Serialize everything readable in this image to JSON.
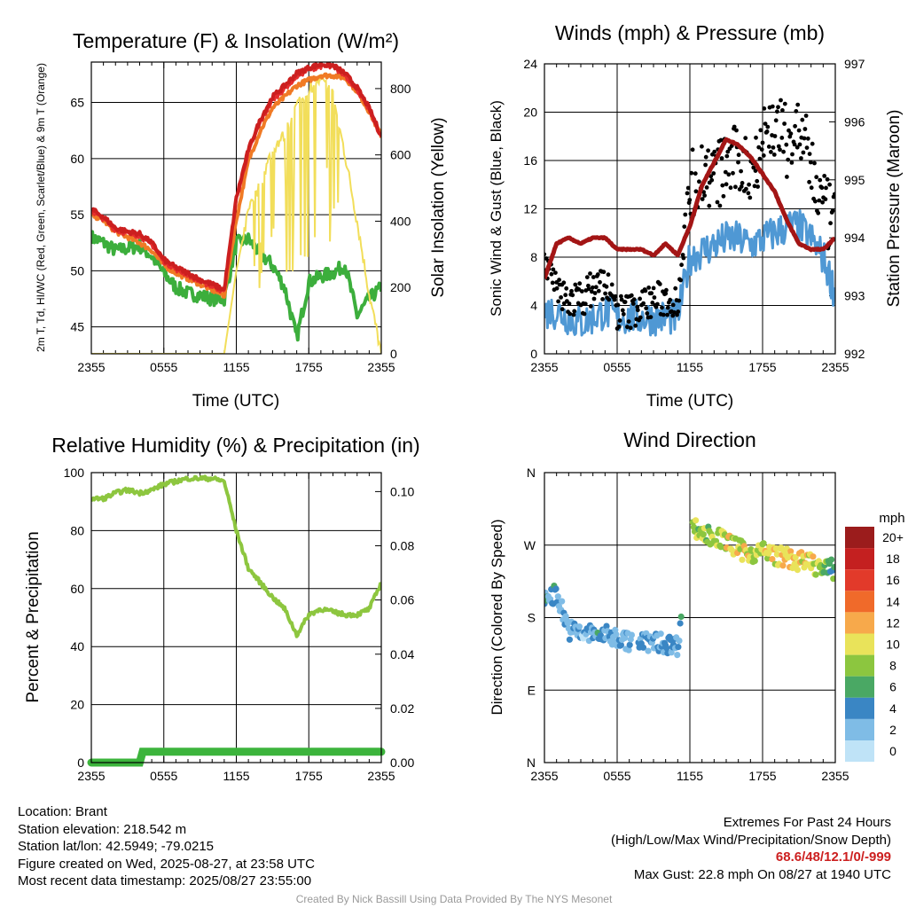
{
  "colors": {
    "t2m": "#cc1f1f",
    "td": "#3cae3c",
    "hiwc": "#e62d2d",
    "t9m": "#f07a25",
    "insolation": "#f2de5a",
    "rh": "#8dc63f",
    "precip": "#3cb43c",
    "pressure": "#a31515",
    "wind": "#4f98d4",
    "gust": "#000000"
  },
  "chart_data": [
    {
      "type": "line",
      "title": "Temperature (F) & Insolation (W/m²)",
      "xlabel": "Time (UTC)",
      "ylabel": "2m T, Td, HI/WC (Red, Green, Scarlet/Blue) & 9m T (Orange)",
      "y2label": "Solar Insolation (Yellow)",
      "x_ticks": [
        "2355",
        "0555",
        "1155",
        "1755",
        "2355"
      ],
      "ylim": [
        42.6,
        68.6
      ],
      "y_ticks": [
        45,
        50,
        55,
        60,
        65
      ],
      "y2lim": [
        0,
        880
      ],
      "y2_ticks": [
        0,
        200,
        400,
        600,
        800
      ],
      "x_hours": [
        0,
        1,
        2,
        3,
        4,
        5,
        6,
        7,
        8,
        9,
        10,
        11,
        12,
        13,
        14,
        15,
        16,
        17,
        18,
        19,
        20,
        21,
        22,
        23,
        24
      ],
      "series": [
        {
          "key": "t2m",
          "axis": "left",
          "values": [
            55.5,
            54.8,
            53.8,
            53.5,
            53.3,
            52.5,
            51.0,
            50.3,
            49.8,
            49.2,
            48.8,
            48.3,
            56.5,
            60.8,
            63.5,
            65.5,
            66.5,
            67.6,
            68.1,
            68.4,
            68.3,
            67.6,
            66.3,
            64.5,
            62.0
          ]
        },
        {
          "key": "hiwc",
          "axis": "left",
          "values": [
            55.3,
            54.6,
            53.6,
            53.3,
            53.1,
            52.3,
            50.8,
            50.1,
            49.6,
            49.0,
            48.6,
            48.1,
            56.2,
            60.5,
            63.2,
            65.2,
            66.2,
            67.3,
            67.9,
            68.2,
            68.1,
            67.4,
            66.1,
            64.3,
            61.8
          ]
        },
        {
          "key": "t9m",
          "axis": "left",
          "values": [
            55.0,
            54.5,
            53.5,
            53.0,
            52.5,
            51.8,
            50.5,
            49.8,
            49.3,
            48.8,
            48.3,
            47.8,
            54.5,
            59.8,
            62.5,
            64.5,
            65.5,
            66.5,
            67.0,
            67.4,
            67.4,
            67.2,
            66.0,
            64.2,
            62.0
          ]
        },
        {
          "key": "td",
          "axis": "left",
          "values": [
            53.0,
            52.5,
            51.8,
            52.0,
            52.2,
            51.3,
            49.8,
            48.5,
            48.0,
            47.8,
            47.5,
            47.5,
            52.5,
            52.8,
            51.5,
            50.5,
            48.5,
            44.0,
            49.0,
            49.5,
            49.8,
            50.5,
            46.0,
            47.5,
            48.5
          ]
        },
        {
          "key": "insolation",
          "axis": "right",
          "values": [
            0,
            0,
            0,
            0,
            0,
            0,
            0,
            0,
            0,
            0,
            0,
            0,
            250,
            430,
            510,
            620,
            660,
            750,
            800,
            830,
            780,
            600,
            400,
            180,
            0
          ]
        }
      ]
    },
    {
      "type": "line",
      "title": "Winds (mph) & Pressure (mb)",
      "xlabel": "Time (UTC)",
      "ylabel": "Sonic Wind & Gust (Blue, Black)",
      "y2label": "Station Pressure (Maroon)",
      "x_ticks": [
        "2355",
        "0555",
        "1155",
        "1755",
        "2355"
      ],
      "ylim": [
        0,
        24
      ],
      "y_ticks": [
        0,
        4,
        8,
        12,
        16,
        20,
        24
      ],
      "y2lim": [
        992,
        997
      ],
      "y2_ticks": [
        992,
        993,
        994,
        995,
        996,
        997
      ],
      "x_hours": [
        0,
        1,
        2,
        3,
        4,
        5,
        6,
        7,
        8,
        9,
        10,
        11,
        12,
        13,
        14,
        15,
        16,
        17,
        18,
        19,
        20,
        21,
        22,
        23,
        24
      ],
      "series": [
        {
          "key": "pressure",
          "axis": "right",
          "values": [
            993.3,
            993.9,
            994.0,
            993.9,
            994.0,
            994.0,
            993.8,
            993.8,
            993.8,
            993.7,
            993.9,
            993.7,
            994.2,
            994.9,
            995.3,
            995.7,
            995.6,
            995.4,
            995.1,
            994.8,
            994.3,
            993.9,
            993.8,
            993.8,
            994.0
          ]
        },
        {
          "key": "wind",
          "axis": "left",
          "values": [
            3.5,
            3.5,
            3.0,
            2.5,
            3.0,
            3.5,
            3.0,
            3.0,
            3.0,
            3.0,
            3.0,
            3.0,
            8.0,
            8.5,
            9.0,
            9.5,
            9.5,
            9.0,
            9.5,
            10.0,
            10.5,
            10.5,
            9.5,
            8.0,
            5.0
          ]
        },
        {
          "key": "gust",
          "axis": "left",
          "values": [
            8.0,
            5.0,
            4.5,
            4.5,
            5.5,
            6.0,
            3.5,
            3.5,
            4.0,
            4.5,
            4.5,
            4.5,
            14.0,
            15.0,
            14.5,
            15.5,
            16.0,
            15.0,
            18.0,
            19.0,
            17.5,
            18.5,
            15.5,
            12.0,
            10.5
          ]
        }
      ]
    },
    {
      "type": "line",
      "title": "Relative Humidity (%) & Precipitation (in)",
      "xlabel": "",
      "ylabel": "Percent & Precipitation",
      "x_ticks": [
        "2355",
        "0555",
        "1155",
        "1755",
        "2355"
      ],
      "ylim": [
        0,
        100
      ],
      "y_ticks": [
        0,
        20,
        40,
        60,
        80,
        100
      ],
      "y2lim": [
        0,
        0.107
      ],
      "y2_ticks": [
        "0.00",
        "0.02",
        "0.04",
        "0.06",
        "0.08",
        "0.10"
      ],
      "x_hours": [
        0,
        1,
        2,
        3,
        4,
        5,
        6,
        7,
        8,
        9,
        10,
        11,
        12,
        13,
        14,
        15,
        16,
        17,
        18,
        19,
        20,
        21,
        22,
        23,
        24
      ],
      "series": [
        {
          "key": "rh",
          "axis": "left",
          "values": [
            91,
            91,
            93,
            94,
            93,
            94,
            96,
            97,
            98,
            98,
            98,
            97,
            80,
            67,
            62,
            57,
            53,
            44,
            51,
            53,
            52,
            51,
            51,
            53,
            62
          ]
        },
        {
          "key": "precip",
          "axis": "right",
          "values": [
            0,
            0,
            0,
            0,
            0.004,
            0.004,
            0.004,
            0.004,
            0.004,
            0.004,
            0.004,
            0.004,
            0.004,
            0.004,
            0.004,
            0.004,
            0.004,
            0.004,
            0.004,
            0.004,
            0.004,
            0.004,
            0.004,
            0.004,
            0.004
          ]
        }
      ]
    },
    {
      "type": "scatter",
      "title": "Wind Direction",
      "xlabel": "",
      "ylabel": "Direction (Colored By Speed)",
      "x_ticks": [
        "2355",
        "0555",
        "1155",
        "1755",
        "2355"
      ],
      "y_ticks": [
        "N",
        "E",
        "S",
        "W",
        "N"
      ],
      "ylim_deg": [
        0,
        360
      ],
      "direction_hours": [
        0,
        1,
        2,
        3,
        4,
        5,
        6,
        7,
        8,
        9,
        10,
        11,
        12,
        13,
        14,
        15,
        16,
        17,
        18,
        19,
        20,
        21,
        22,
        23,
        24
      ],
      "direction_deg": [
        205,
        210,
        165,
        160,
        160,
        158,
        155,
        150,
        150,
        150,
        148,
        145,
        295,
        285,
        280,
        275,
        265,
        260,
        262,
        258,
        254,
        250,
        248,
        240,
        240
      ],
      "colorbar": {
        "title": "mph",
        "labels": [
          "20+",
          "18",
          "16",
          "14",
          "12",
          "10",
          "8",
          "6",
          "4",
          "2",
          "0"
        ],
        "colors": [
          "#9b1c1c",
          "#c42020",
          "#e23a2a",
          "#f06a2a",
          "#f7a94b",
          "#e9e35a",
          "#8cc63f",
          "#4aa864",
          "#3a86c4",
          "#7fbce6",
          "#bfe3f7"
        ]
      }
    }
  ],
  "info": {
    "location": "Location: Brant",
    "elevation": "Station elevation: 218.542 m",
    "latlon": "Station lat/lon: 42.5949; -79.0215",
    "created": "Figure created on Wed, 2025-08-27, at 23:58 UTC",
    "recent": "Most recent data timestamp: 2025/08/27 23:55:00"
  },
  "extremes": {
    "title": "Extremes For Past 24 Hours",
    "subtitle": "(High/Low/Max Wind/Precipitation/Snow Depth)",
    "values": "68.6/48/12.1/0/-999",
    "max_gust": "Max Gust: 22.8 mph On 08/27 at 1940 UTC"
  },
  "credit": "Created By Nick Bassill Using Data Provided By The NYS Mesonet"
}
